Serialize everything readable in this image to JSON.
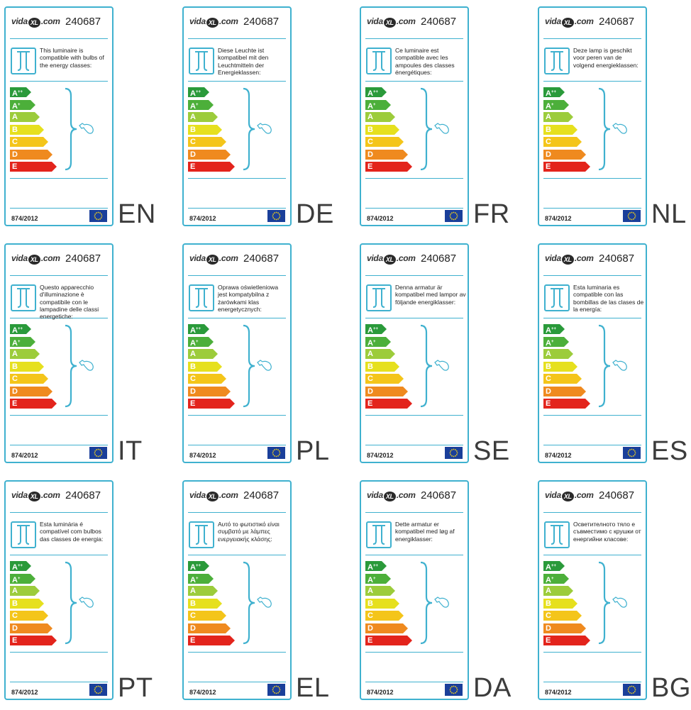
{
  "brand": {
    "prefix": "vida",
    "mark": "XL",
    "suffix": ".com"
  },
  "model": "240687",
  "regulation": "874/2012",
  "energy_classes": [
    {
      "letter": "A",
      "sup": "++",
      "color": "#2a9a3a"
    },
    {
      "letter": "A",
      "sup": "+",
      "color": "#4caf3a"
    },
    {
      "letter": "A",
      "sup": "",
      "color": "#9ccc3b"
    },
    {
      "letter": "B",
      "sup": "",
      "color": "#e6e01e"
    },
    {
      "letter": "C",
      "sup": "",
      "color": "#f4c51a"
    },
    {
      "letter": "D",
      "sup": "",
      "color": "#ef8a1f"
    },
    {
      "letter": "E",
      "sup": "",
      "color": "#e3241c"
    }
  ],
  "colors": {
    "frame": "#3fb1cf",
    "eu_flag": "#1a3f9a"
  },
  "labels": [
    {
      "lang": "EN",
      "text": "This luminaire is compatible with bulbs of the energy classes:"
    },
    {
      "lang": "DE",
      "text": "Diese Leuchte ist kompatibel mit den Leuchtmitteln der Energieklassen:"
    },
    {
      "lang": "FR",
      "text": "Ce luminaire est compatible avec les ampoules des classes énergétiques:"
    },
    {
      "lang": "NL",
      "text": "Deze lamp is geschikt voor peren van de volgend energieklassen:"
    },
    {
      "lang": "IT",
      "text": "Questo apparecchio d'illuminazione è compatibile con le lampadine delle classi energetiche:"
    },
    {
      "lang": "PL",
      "text": "Oprawa oświetleniowa jest kompatybilna z żarówkami klas energetycznych:"
    },
    {
      "lang": "SE",
      "text": "Denna armatur är kompatibel med lampor av följande energiklasser:"
    },
    {
      "lang": "ES",
      "text": "Esta luminaria es compatible con las bombillas de las clases de la energía:"
    },
    {
      "lang": "PT",
      "text": "Esta luminária é compatível com bulbos das classes de energia:"
    },
    {
      "lang": "EL",
      "text": "Αυτό το φωτιστικό είναι συμβατό με λάμπες ενεργειακής κλάσης:"
    },
    {
      "lang": "DA",
      "text": "Dette armatur er kompatibel med løg af energiklasser:"
    },
    {
      "lang": "BG",
      "text": "Осветителното тяло е съвместимо с крушки от енергийни класове:"
    }
  ]
}
